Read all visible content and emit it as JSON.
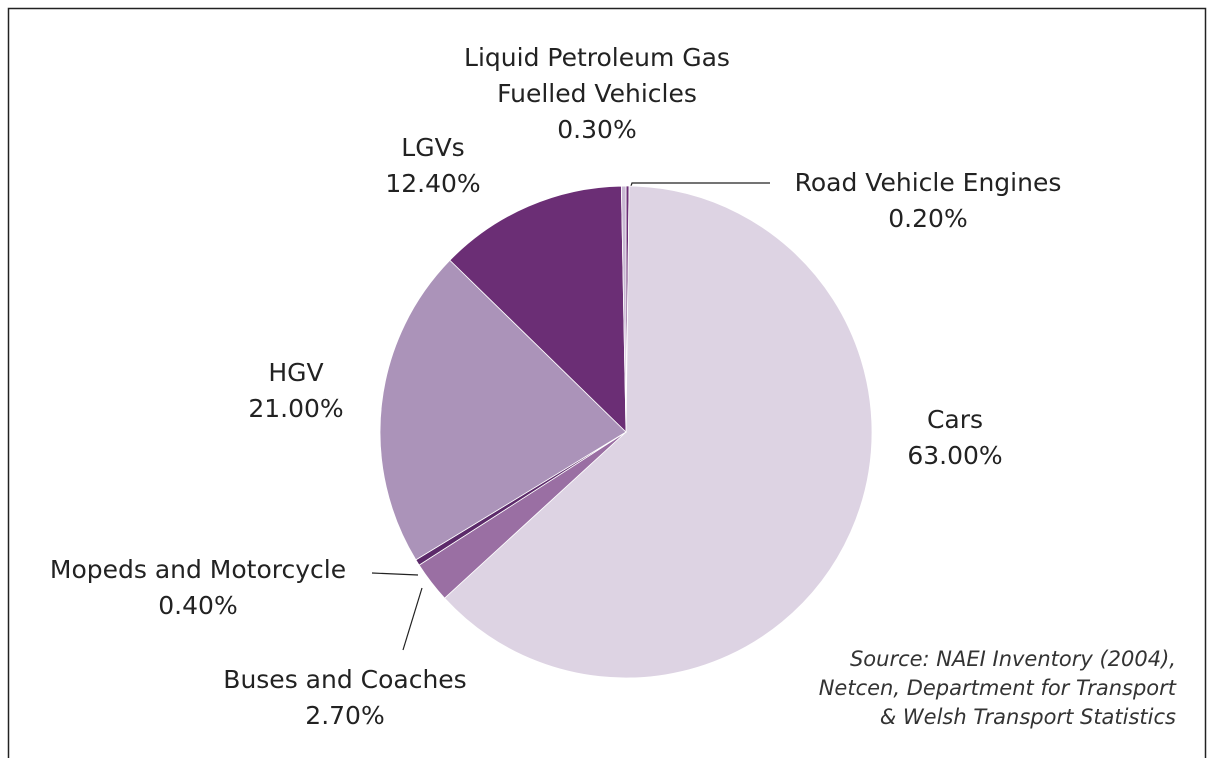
{
  "chart_data": {
    "type": "pie",
    "categories": [
      "Road Vehicle Engines",
      "Cars",
      "Buses and Coaches",
      "Mopeds and Motorcycle",
      "HGV",
      "LGVs",
      "Liquid Petroleum Gas Fuelled Vehicles"
    ],
    "values": [
      0.2,
      63,
      2.7,
      0.4,
      21,
      12.4,
      0.3
    ],
    "value_labels": [
      "0.20%",
      "63.00%",
      "2.70%",
      "0.40%",
      "21.00%",
      "12.40%",
      "0.30%"
    ],
    "colors": [
      "#6b2e75",
      "#ddd3e3",
      "#9a6fa3",
      "#5c2a6a",
      "#ab93b9",
      "#6b2e75",
      "#c9b8d3"
    ],
    "source": [
      "Source: NAEI Inventory (2004),",
      "Netcen, Department for Transport",
      "& Welsh Transport Statistics"
    ]
  }
}
